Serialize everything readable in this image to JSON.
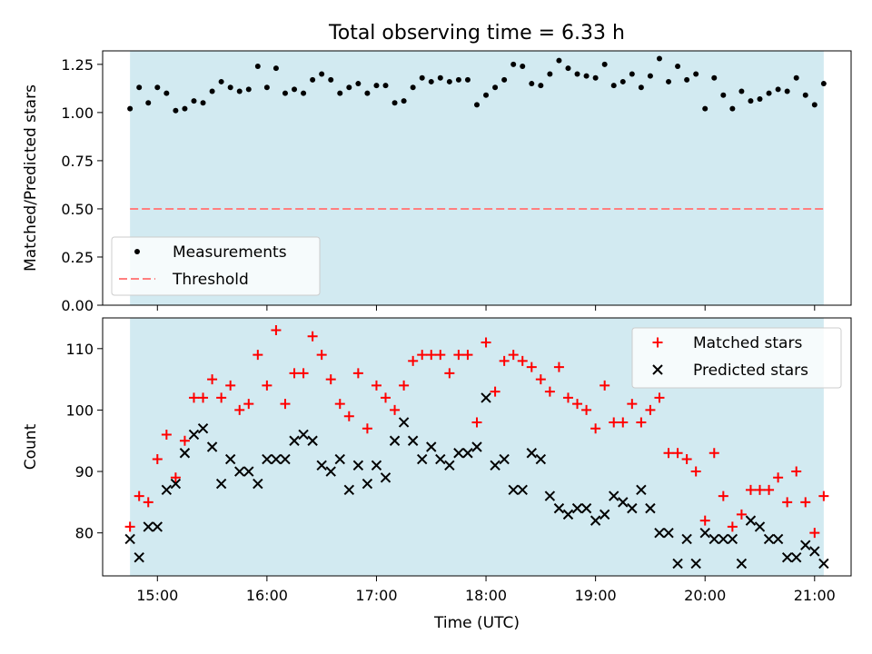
{
  "chart_data": [
    {
      "type": "scatter",
      "title": "Total observing time = 6.33 h",
      "xlabel": "",
      "ylabel": "Matched/Predicted stars",
      "xlim": [
        "14:30",
        "21:20"
      ],
      "ylim": [
        0,
        1.32
      ],
      "yticks": [
        0.0,
        0.25,
        0.5,
        0.75,
        1.0,
        1.25
      ],
      "ytick_labels": [
        "0.00",
        "0.25",
        "0.50",
        "0.75",
        "1.00",
        "1.25"
      ],
      "xticks": [
        "15:00",
        "16:00",
        "17:00",
        "18:00",
        "19:00",
        "20:00",
        "21:00"
      ],
      "observing_window": [
        "14:45",
        "21:05"
      ],
      "window_color": "#add8e6",
      "legend_position": "lower left",
      "series": [
        {
          "name": "Measurements",
          "marker": "dot",
          "color": "#000000",
          "x": [
            "14:45",
            "14:50",
            "14:55",
            "15:00",
            "15:05",
            "15:10",
            "15:15",
            "15:20",
            "15:25",
            "15:30",
            "15:35",
            "15:40",
            "15:45",
            "15:50",
            "15:55",
            "16:00",
            "16:05",
            "16:10",
            "16:15",
            "16:20",
            "16:25",
            "16:30",
            "16:35",
            "16:40",
            "16:45",
            "16:50",
            "16:55",
            "17:00",
            "17:05",
            "17:10",
            "17:15",
            "17:20",
            "17:25",
            "17:30",
            "17:35",
            "17:40",
            "17:45",
            "17:50",
            "17:55",
            "18:00",
            "18:05",
            "18:10",
            "18:15",
            "18:20",
            "18:25",
            "18:30",
            "18:35",
            "18:40",
            "18:45",
            "18:50",
            "18:55",
            "19:00",
            "19:05",
            "19:10",
            "19:15",
            "19:20",
            "19:25",
            "19:30",
            "19:35",
            "19:40",
            "19:45",
            "19:50",
            "19:55",
            "20:00",
            "20:05",
            "20:10",
            "20:15",
            "20:20",
            "20:25",
            "20:30",
            "20:35",
            "20:40",
            "20:45",
            "20:50",
            "20:55",
            "21:00",
            "21:05"
          ],
          "values": [
            1.02,
            1.13,
            1.05,
            1.13,
            1.1,
            1.01,
            1.02,
            1.06,
            1.05,
            1.11,
            1.16,
            1.13,
            1.11,
            1.12,
            1.24,
            1.13,
            1.23,
            1.1,
            1.12,
            1.1,
            1.17,
            1.2,
            1.17,
            1.1,
            1.13,
            1.15,
            1.1,
            1.14,
            1.14,
            1.05,
            1.06,
            1.13,
            1.18,
            1.16,
            1.18,
            1.16,
            1.17,
            1.17,
            1.04,
            1.09,
            1.13,
            1.17,
            1.25,
            1.24,
            1.15,
            1.14,
            1.2,
            1.27,
            1.23,
            1.2,
            1.19,
            1.18,
            1.25,
            1.14,
            1.16,
            1.2,
            1.13,
            1.19,
            1.28,
            1.16,
            1.24,
            1.17,
            1.2,
            1.02,
            1.18,
            1.09,
            1.02,
            1.11,
            1.06,
            1.07,
            1.1,
            1.12,
            1.11,
            1.18,
            1.09,
            1.04,
            1.15
          ]
        },
        {
          "name": "Threshold",
          "marker": "dashed-line",
          "color": "#ff7f7f",
          "x": [
            "14:45",
            "21:05"
          ],
          "values": [
            0.5,
            0.5
          ]
        }
      ]
    },
    {
      "type": "scatter",
      "title": "",
      "xlabel": "Time (UTC)",
      "ylabel": "Count",
      "xlim": [
        "14:30",
        "21:20"
      ],
      "ylim": [
        73,
        115
      ],
      "yticks": [
        80,
        90,
        100,
        110
      ],
      "ytick_labels": [
        "80",
        "90",
        "100",
        "110"
      ],
      "xticks": [
        "15:00",
        "16:00",
        "17:00",
        "18:00",
        "19:00",
        "20:00",
        "21:00"
      ],
      "observing_window": [
        "14:45",
        "21:05"
      ],
      "window_color": "#add8e6",
      "legend_position": "upper right",
      "series": [
        {
          "name": "Matched stars",
          "marker": "plus",
          "color": "#ff0000",
          "x": [
            "14:45",
            "14:50",
            "14:55",
            "15:00",
            "15:05",
            "15:10",
            "15:15",
            "15:20",
            "15:25",
            "15:30",
            "15:35",
            "15:40",
            "15:45",
            "15:50",
            "15:55",
            "16:00",
            "16:05",
            "16:10",
            "16:15",
            "16:20",
            "16:25",
            "16:30",
            "16:35",
            "16:40",
            "16:45",
            "16:50",
            "16:55",
            "17:00",
            "17:05",
            "17:10",
            "17:15",
            "17:20",
            "17:25",
            "17:30",
            "17:35",
            "17:40",
            "17:45",
            "17:50",
            "17:55",
            "18:00",
            "18:05",
            "18:10",
            "18:15",
            "18:20",
            "18:25",
            "18:30",
            "18:35",
            "18:40",
            "18:45",
            "18:50",
            "18:55",
            "19:00",
            "19:05",
            "19:10",
            "19:15",
            "19:20",
            "19:25",
            "19:30",
            "19:35",
            "19:40",
            "19:45",
            "19:50",
            "19:55",
            "20:00",
            "20:05",
            "20:10",
            "20:15",
            "20:20",
            "20:25",
            "20:30",
            "20:35",
            "20:40",
            "20:45",
            "20:50",
            "20:55",
            "21:00",
            "21:05"
          ],
          "values": [
            81,
            86,
            85,
            92,
            96,
            89,
            95,
            102,
            102,
            105,
            102,
            104,
            100,
            101,
            109,
            104,
            113,
            101,
            106,
            106,
            112,
            109,
            105,
            101,
            99,
            106,
            97,
            104,
            102,
            100,
            104,
            108,
            109,
            109,
            109,
            106,
            109,
            109,
            98,
            111,
            103,
            108,
            109,
            108,
            107,
            105,
            103,
            107,
            102,
            101,
            100,
            97,
            104,
            98,
            98,
            101,
            98,
            100,
            102,
            93,
            93,
            92,
            90,
            82,
            93,
            86,
            81,
            83,
            87,
            87,
            87,
            89,
            85,
            90,
            85,
            80,
            86
          ]
        },
        {
          "name": "Predicted stars",
          "marker": "x",
          "color": "#000000",
          "x": [
            "14:45",
            "14:50",
            "14:55",
            "15:00",
            "15:05",
            "15:10",
            "15:15",
            "15:20",
            "15:25",
            "15:30",
            "15:35",
            "15:40",
            "15:45",
            "15:50",
            "15:55",
            "16:00",
            "16:05",
            "16:10",
            "16:15",
            "16:20",
            "16:25",
            "16:30",
            "16:35",
            "16:40",
            "16:45",
            "16:50",
            "16:55",
            "17:00",
            "17:05",
            "17:10",
            "17:15",
            "17:20",
            "17:25",
            "17:30",
            "17:35",
            "17:40",
            "17:45",
            "17:50",
            "17:55",
            "18:00",
            "18:05",
            "18:10",
            "18:15",
            "18:20",
            "18:25",
            "18:30",
            "18:35",
            "18:40",
            "18:45",
            "18:50",
            "18:55",
            "19:00",
            "19:05",
            "19:10",
            "19:15",
            "19:20",
            "19:25",
            "19:30",
            "19:35",
            "19:40",
            "19:45",
            "19:50",
            "19:55",
            "20:00",
            "20:05",
            "20:10",
            "20:15",
            "20:20",
            "20:25",
            "20:30",
            "20:35",
            "20:40",
            "20:45",
            "20:50",
            "20:55",
            "21:00",
            "21:05"
          ],
          "values": [
            79,
            76,
            81,
            81,
            87,
            88,
            93,
            96,
            97,
            94,
            88,
            92,
            90,
            90,
            88,
            92,
            92,
            92,
            95,
            96,
            95,
            91,
            90,
            92,
            87,
            91,
            88,
            91,
            89,
            95,
            98,
            95,
            92,
            94,
            92,
            91,
            93,
            93,
            94,
            102,
            91,
            92,
            87,
            87,
            93,
            92,
            86,
            84,
            83,
            84,
            84,
            82,
            83,
            86,
            85,
            84,
            87,
            84,
            80,
            80,
            75,
            79,
            75,
            80,
            79,
            79,
            79,
            75,
            82,
            81,
            79,
            79,
            76,
            76,
            78,
            77,
            75
          ]
        }
      ]
    }
  ]
}
